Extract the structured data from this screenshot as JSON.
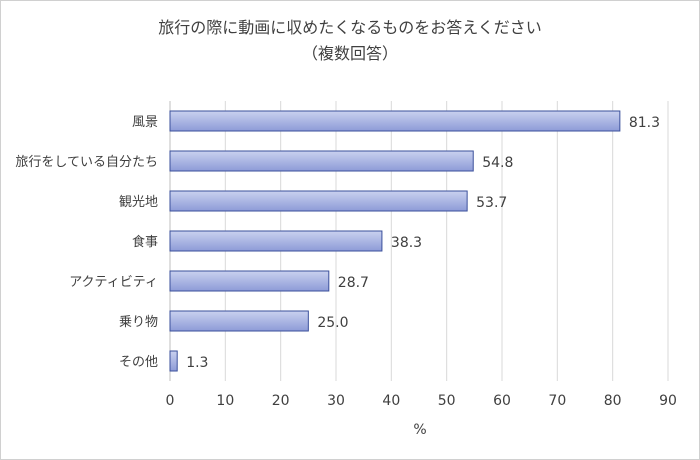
{
  "chart_data": {
    "type": "bar",
    "orientation": "horizontal",
    "title": "旅行の際に動画に収めたくなるものをお答えください",
    "subtitle": "（複数回答）",
    "xlabel": "%",
    "ylabel": "",
    "categories": [
      "風景",
      "旅行をしている自分たち",
      "観光地",
      "食事",
      "アクティビティ",
      "乗り物",
      "その他"
    ],
    "values": [
      81.3,
      54.8,
      53.7,
      38.3,
      28.7,
      25.0,
      1.3
    ],
    "value_labels": [
      "81.3",
      "54.8",
      "53.7",
      "38.3",
      "28.7",
      "25.0",
      "1.3"
    ],
    "xlim": [
      0,
      90
    ],
    "x_ticks": [
      "0",
      "10",
      "20",
      "30",
      "40",
      "50",
      "60",
      "70",
      "80",
      "90"
    ],
    "grid": "vertical",
    "legend": "none",
    "colors": {
      "bar_fill_top": "#c9d1ef",
      "bar_fill_bottom": "#8d9bd7",
      "bar_stroke": "#3a4f9b",
      "gridline": "#d9d9d9",
      "axis_line": "#bfbfbf",
      "text": "#404040"
    }
  }
}
